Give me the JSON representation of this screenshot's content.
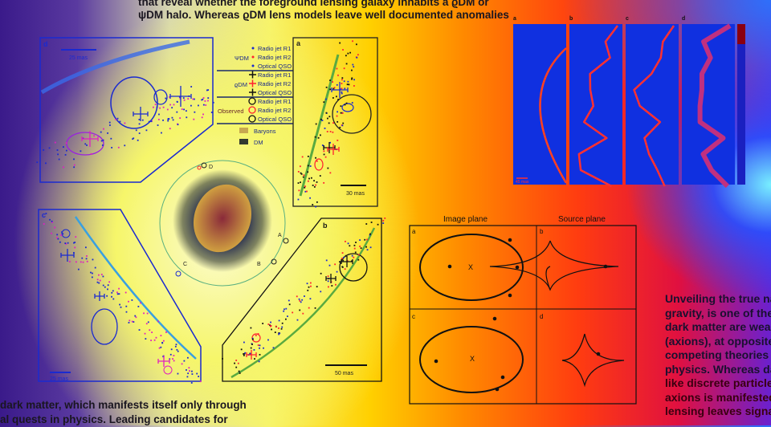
{
  "top_text": {
    "line1": "that reveal whether the foreground lensing galaxy inhabits a ϱDM or",
    "line2": "ψDM halo. Whereas ϱDM lens models leave well documented anomalies"
  },
  "right_text": [
    "Unveiling the true natu",
    "gravity, is one of the pri",
    "dark matter are weakly",
    "(axions), at opposite ex",
    "competing theories to s",
    "physics. Whereas dark m",
    "like discrete particles (c",
    "axions is manifested as",
    "lensing leaves signature"
  ],
  "bottom_text": {
    "line1": "dark matter, which manifests itself only through",
    "line2": "al quests in physics. Leading candidates for"
  },
  "legend": {
    "groups": [
      {
        "label": "ΨDM",
        "items": [
          "Radio jet R1",
          "Radio jet R2",
          "Optical QSO"
        ],
        "marker": "dot"
      },
      {
        "label": "ϱDM",
        "items": [
          "Radio jet R1",
          "Radio jet R2",
          "Optical QSO"
        ],
        "marker": "cross"
      },
      {
        "label": "Observed",
        "items": [
          "Radio jet R1",
          "Radio jet R2",
          "Optical QSO"
        ],
        "marker": "circle"
      }
    ],
    "swatches": [
      {
        "label": "Baryons",
        "color": "#c8a850"
      },
      {
        "label": "DM",
        "color": "#333a30"
      }
    ]
  },
  "panels": {
    "a": {
      "label": "a",
      "scale": "30 mas"
    },
    "b": {
      "label": "b",
      "scale": "50 mas"
    },
    "c": {
      "label": "c",
      "scale": "25 mas"
    },
    "d": {
      "label": "d",
      "scale": "25 mas"
    },
    "lens_images": [
      "A",
      "B",
      "C",
      "D"
    ]
  },
  "plane_diagram": {
    "image_title": "Image plane",
    "source_title": "Source plane",
    "panels": [
      "a",
      "b",
      "c",
      "d"
    ],
    "center_mark": "X"
  },
  "maps": {
    "labels": [
      "a",
      "b",
      "c",
      "d"
    ],
    "scale": "45 mas"
  },
  "colors": {
    "psi_blue": "#1a2ad0",
    "rho_red": "#ff2030",
    "magenta": "#e020c0",
    "arc_green": "#5aaa40",
    "arc_cyan": "#3aa0e0"
  }
}
